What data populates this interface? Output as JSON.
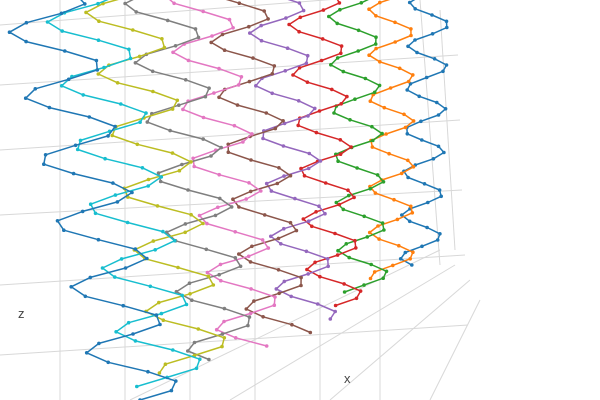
{
  "chart_data": {
    "type": "line3d",
    "title": "",
    "axes": {
      "x_title": "x",
      "z_title": "z",
      "y_title": ""
    },
    "grid": true,
    "markers": true,
    "legend": "none",
    "series": [
      {
        "color": "#1f77b4"
      },
      {
        "color": "#17becf"
      },
      {
        "color": "#bcbd22"
      },
      {
        "color": "#7f7f7f"
      },
      {
        "color": "#e377c2"
      },
      {
        "color": "#8c564b"
      },
      {
        "color": "#9467bd"
      },
      {
        "color": "#d62728"
      },
      {
        "color": "#2ca02c"
      },
      {
        "color": "#ff7f0e"
      },
      {
        "color": "#1f77b4"
      }
    ]
  }
}
